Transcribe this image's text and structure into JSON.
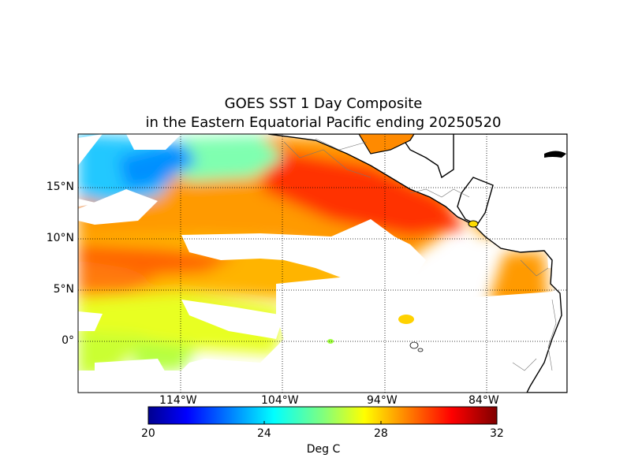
{
  "title_line1": "GOES SST 1 Day Composite",
  "title_line2": "in the Eastern Equatorial Pacific ending 20250520",
  "lat_labels": [
    "15°N",
    "10°N",
    "5°N",
    "0°"
  ],
  "lon_labels": [
    "114°W",
    "104°W",
    "94°W",
    "84°W"
  ],
  "colorbar": {
    "ticks": [
      "20",
      "24",
      "28",
      "32"
    ],
    "units": "Deg C",
    "min": 20,
    "max": 32,
    "colormap": "jet"
  },
  "colors": {
    "land": "#ffffff",
    "coast": "#000000",
    "grid": "#000000"
  }
}
